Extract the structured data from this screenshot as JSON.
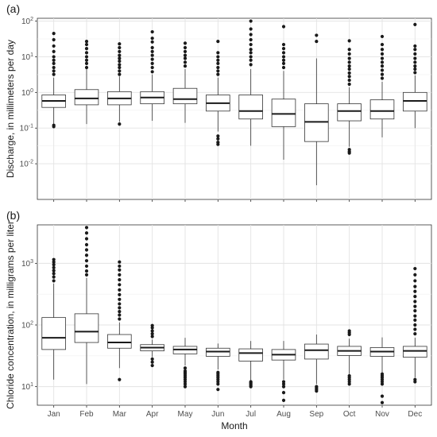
{
  "chart_data": [
    {
      "type": "boxplot",
      "panel_label": "(a)",
      "ylabel": "Discharge, in millimeters per day",
      "xlabel": "",
      "yscale": "log",
      "ylim": [
        0.001,
        120
      ],
      "yticks": [
        {
          "value": 0.01,
          "base": "10",
          "exp": "-2"
        },
        {
          "value": 0.1,
          "base": "10",
          "exp": "-1"
        },
        {
          "value": 1,
          "base": "10",
          "exp": "0"
        },
        {
          "value": 10,
          "base": "10",
          "exp": "1"
        },
        {
          "value": 100,
          "base": "10",
          "exp": "2"
        }
      ],
      "categories": [
        "Jan",
        "Feb",
        "Mar",
        "Apr",
        "May",
        "Jun",
        "Jul",
        "Aug",
        "Sep",
        "Oct",
        "Nov",
        "Dec"
      ],
      "grid": true,
      "boxes": [
        {
          "month": "Jan",
          "whisker_low": 0.12,
          "q1": 0.38,
          "median": 0.58,
          "q3": 0.85,
          "whisker_high": 2.6,
          "outliers": [
            0.11,
            0.12,
            3.2,
            4.0,
            5.0,
            6.5,
            8,
            10,
            14,
            20,
            30,
            45
          ]
        },
        {
          "month": "Feb",
          "whisker_low": 0.13,
          "q1": 0.45,
          "median": 0.68,
          "q3": 1.2,
          "whisker_high": 4.5,
          "outliers": [
            5,
            6.5,
            8,
            10,
            13,
            17,
            22,
            27
          ]
        },
        {
          "month": "Mar",
          "whisker_low": 0.15,
          "q1": 0.45,
          "median": 0.68,
          "q3": 1.05,
          "whisker_high": 2.8,
          "outliers": [
            0.13,
            3.2,
            4,
            5,
            6,
            7.5,
            9,
            11,
            14,
            18,
            23
          ]
        },
        {
          "month": "Apr",
          "whisker_low": 0.16,
          "q1": 0.48,
          "median": 0.72,
          "q3": 1.05,
          "whisker_high": 3.2,
          "outliers": [
            3.8,
            5,
            6.5,
            8.5,
            11,
            14,
            18,
            26,
            33,
            50
          ]
        },
        {
          "month": "May",
          "whisker_low": 0.14,
          "q1": 0.48,
          "median": 0.65,
          "q3": 1.3,
          "whisker_high": 4.5,
          "outliers": [
            5.5,
            7,
            9,
            11,
            14,
            18,
            24
          ]
        },
        {
          "month": "Jun",
          "whisker_low": 0.08,
          "q1": 0.3,
          "median": 0.5,
          "q3": 0.85,
          "whisker_high": 2.6,
          "outliers": [
            0.035,
            0.04,
            0.05,
            0.06,
            3.2,
            4,
            5,
            6.5,
            8,
            10,
            13,
            27
          ]
        },
        {
          "month": "Jul",
          "whisker_low": 0.032,
          "q1": 0.18,
          "median": 0.3,
          "q3": 0.85,
          "whisker_high": 4.5,
          "outliers": [
            6,
            8,
            10,
            13,
            16,
            22,
            30,
            42,
            60,
            100
          ]
        },
        {
          "month": "Aug",
          "whisker_low": 0.013,
          "q1": 0.11,
          "median": 0.25,
          "q3": 0.65,
          "whisker_high": 4.0,
          "outliers": [
            5,
            6.5,
            8,
            10,
            13,
            17,
            22,
            70
          ]
        },
        {
          "month": "Sep",
          "whisker_low": 0.0025,
          "q1": 0.042,
          "median": 0.15,
          "q3": 0.48,
          "whisker_high": 9,
          "outliers": [
            27,
            40
          ]
        },
        {
          "month": "Oct",
          "whisker_low": 0.03,
          "q1": 0.16,
          "median": 0.3,
          "q3": 0.48,
          "whisker_high": 1.4,
          "outliers": [
            0.02,
            0.022,
            0.025,
            1.7,
            2.2,
            2.8,
            3.5,
            4.5,
            5.5,
            7,
            9,
            12,
            16,
            28
          ]
        },
        {
          "month": "Nov",
          "whisker_low": 0.055,
          "q1": 0.18,
          "median": 0.3,
          "q3": 0.62,
          "whisker_high": 2.0,
          "outliers": [
            2.5,
            3.2,
            4.2,
            5.5,
            7,
            9,
            12,
            16,
            22,
            37
          ]
        },
        {
          "month": "Dec",
          "whisker_low": 0.1,
          "q1": 0.3,
          "median": 0.58,
          "q3": 1.0,
          "whisker_high": 3.0,
          "outliers": [
            3.6,
            4.5,
            5.5,
            7,
            9,
            12,
            16,
            20,
            80
          ]
        }
      ]
    },
    {
      "type": "boxplot",
      "panel_label": "(b)",
      "ylabel": "Chloride concentration, in milligrams per liter",
      "xlabel": "Month",
      "yscale": "log",
      "ylim": [
        5,
        4200
      ],
      "yticks": [
        {
          "value": 10,
          "base": "10",
          "exp": "1"
        },
        {
          "value": 100,
          "base": "10",
          "exp": "2"
        },
        {
          "value": 1000,
          "base": "10",
          "exp": "3"
        }
      ],
      "categories": [
        "Jan",
        "Feb",
        "Mar",
        "Apr",
        "May",
        "Jun",
        "Jul",
        "Aug",
        "Sep",
        "Oct",
        "Nov",
        "Dec"
      ],
      "grid": true,
      "boxes": [
        {
          "month": "Jan",
          "whisker_low": 13,
          "q1": 40,
          "median": 62,
          "q3": 132,
          "whisker_high": 470,
          "outliers": [
            520,
            600,
            680,
            760,
            850,
            950,
            1050,
            1150
          ]
        },
        {
          "month": "Feb",
          "whisker_low": 11,
          "q1": 52,
          "median": 78,
          "q3": 152,
          "whisker_high": 580,
          "outliers": [
            650,
            750,
            900,
            1100,
            1350,
            1650,
            2000,
            2500,
            3100,
            3800
          ]
        },
        {
          "month": "Mar",
          "whisker_low": 20,
          "q1": 42,
          "median": 52,
          "q3": 70,
          "whisker_high": 110,
          "outliers": [
            13,
            125,
            145,
            165,
            190,
            220,
            260,
            310,
            370,
            450,
            540,
            650,
            780,
            900,
            1050
          ]
        },
        {
          "month": "Apr",
          "whisker_low": 30,
          "q1": 38,
          "median": 43,
          "q3": 48,
          "whisker_high": 58,
          "outliers": [
            22,
            25,
            28,
            65,
            72,
            80,
            90,
            98
          ]
        },
        {
          "month": "May",
          "whisker_low": 22,
          "q1": 34,
          "median": 40,
          "q3": 45,
          "whisker_high": 62,
          "outliers": [
            10,
            11,
            12,
            13,
            14,
            15,
            16,
            17,
            18,
            20
          ]
        },
        {
          "month": "Jun",
          "whisker_low": 19,
          "q1": 31,
          "median": 37,
          "q3": 42,
          "whisker_high": 50,
          "outliers": [
            9,
            11,
            12,
            13,
            14,
            15,
            16,
            17
          ]
        },
        {
          "month": "Jul",
          "whisker_low": 12,
          "q1": 26,
          "median": 35,
          "q3": 41,
          "whisker_high": 55,
          "outliers": [
            10,
            10.5,
            11,
            11.5,
            12
          ]
        },
        {
          "month": "Aug",
          "whisker_low": 13,
          "q1": 27,
          "median": 33,
          "q3": 40,
          "whisker_high": 55,
          "outliers": [
            6,
            8,
            10,
            11,
            12
          ]
        },
        {
          "month": "Sep",
          "whisker_low": 11,
          "q1": 28,
          "median": 39,
          "q3": 49,
          "whisker_high": 70,
          "outliers": [
            8.5,
            9,
            9.5,
            10
          ]
        },
        {
          "month": "Oct",
          "whisker_low": 16,
          "q1": 32,
          "median": 38,
          "q3": 45,
          "whisker_high": 60,
          "outliers": [
            11,
            12,
            13,
            14,
            15,
            70,
            75,
            80
          ]
        },
        {
          "month": "Nov",
          "whisker_low": 17,
          "q1": 31,
          "median": 37,
          "q3": 43,
          "whisker_high": 63,
          "outliers": [
            5.5,
            7,
            11,
            12,
            13,
            14,
            15,
            16
          ]
        },
        {
          "month": "Dec",
          "whisker_low": 14,
          "q1": 30,
          "median": 38,
          "q3": 45,
          "whisker_high": 62,
          "outliers": [
            12,
            13,
            72,
            85,
            100,
            120,
            140,
            170,
            200,
            240,
            290,
            350,
            420,
            520,
            650,
            820
          ]
        }
      ]
    }
  ]
}
